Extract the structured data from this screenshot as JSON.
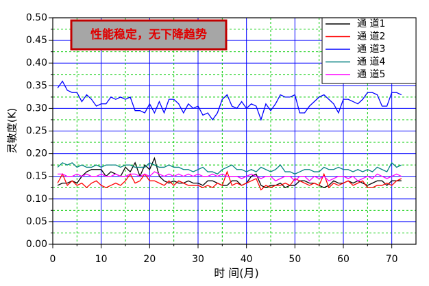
{
  "chart_data": {
    "type": "line",
    "annotation": "性能稳定，无下降趋势",
    "xlabel": "时 间(月)",
    "ylabel": "灵敏度(K)",
    "xlim": [
      0,
      75
    ],
    "xticks": [
      0,
      10,
      20,
      30,
      40,
      50,
      60,
      70
    ],
    "ylim": [
      0,
      0.5
    ],
    "yticks": [
      {
        "value": 0,
        "label": "0.00"
      },
      {
        "value": 0.05,
        "label": "0.05"
      },
      {
        "value": 0.1,
        "label": "0.10"
      },
      {
        "value": 0.15,
        "label": "0.15"
      },
      {
        "value": 0.2,
        "label": "0.20"
      },
      {
        "value": 0.25,
        "label": "0.25"
      },
      {
        "value": 0.3,
        "label": "0.30"
      },
      {
        "value": 0.35,
        "label": "0.35"
      },
      {
        "value": 0.4,
        "label": "0.40"
      },
      {
        "value": 0.45,
        "label": "0.45"
      },
      {
        "value": 0.5,
        "label": "0.50"
      }
    ],
    "grid": true,
    "legend": "upper right",
    "x": [
      1,
      2,
      3,
      4,
      5,
      6,
      7,
      8,
      9,
      10,
      11,
      12,
      13,
      14,
      15,
      16,
      17,
      18,
      19,
      20,
      21,
      22,
      23,
      24,
      25,
      26,
      27,
      28,
      29,
      30,
      31,
      32,
      33,
      34,
      35,
      36,
      37,
      38,
      39,
      40,
      41,
      42,
      43,
      44,
      45,
      46,
      47,
      48,
      49,
      50,
      51,
      52,
      53,
      54,
      55,
      56,
      57,
      58,
      59,
      60,
      61,
      62,
      63,
      64,
      65,
      66,
      67,
      68,
      69,
      70,
      71,
      72
    ],
    "series": [
      {
        "name": "通 道1",
        "color": "#000000",
        "values": [
          0.13,
          0.135,
          0.135,
          0.14,
          0.135,
          0.15,
          0.16,
          0.165,
          0.165,
          0.165,
          0.15,
          0.16,
          0.155,
          0.15,
          0.17,
          0.16,
          0.18,
          0.15,
          0.175,
          0.165,
          0.19,
          0.15,
          0.14,
          0.135,
          0.14,
          0.135,
          0.135,
          0.14,
          0.135,
          0.135,
          0.13,
          0.14,
          0.14,
          0.135,
          0.13,
          0.13,
          0.14,
          0.14,
          0.13,
          0.135,
          0.15,
          0.155,
          0.13,
          0.125,
          0.13,
          0.13,
          0.135,
          0.125,
          0.13,
          0.13,
          0.14,
          0.14,
          0.135,
          0.135,
          0.13,
          0.125,
          0.13,
          0.14,
          0.135,
          0.135,
          0.14,
          0.135,
          0.14,
          0.135,
          0.13,
          0.135,
          0.14,
          0.14,
          0.13,
          0.14,
          0.14,
          0.14
        ]
      },
      {
        "name": "通 道2",
        "color": "#ff0000",
        "values": [
          0.135,
          0.155,
          0.13,
          0.14,
          0.13,
          0.135,
          0.125,
          0.135,
          0.14,
          0.13,
          0.125,
          0.13,
          0.135,
          0.13,
          0.14,
          0.155,
          0.135,
          0.14,
          0.155,
          0.14,
          0.14,
          0.135,
          0.13,
          0.14,
          0.13,
          0.14,
          0.135,
          0.13,
          0.13,
          0.13,
          0.125,
          0.13,
          0.125,
          0.135,
          0.13,
          0.16,
          0.13,
          0.135,
          0.13,
          0.135,
          0.14,
          0.145,
          0.12,
          0.13,
          0.125,
          0.13,
          0.13,
          0.135,
          0.13,
          0.145,
          0.14,
          0.135,
          0.13,
          0.135,
          0.13,
          0.155,
          0.125,
          0.135,
          0.13,
          0.135,
          0.14,
          0.13,
          0.135,
          0.14,
          0.125,
          0.125,
          0.13,
          0.13,
          0.135,
          0.13,
          0.14,
          0.145
        ]
      },
      {
        "name": "通 道3",
        "color": "#0000ff",
        "values": [
          0.345,
          0.36,
          0.34,
          0.335,
          0.335,
          0.315,
          0.33,
          0.32,
          0.305,
          0.31,
          0.31,
          0.325,
          0.32,
          0.325,
          0.32,
          0.325,
          0.295,
          0.295,
          0.29,
          0.31,
          0.29,
          0.315,
          0.29,
          0.32,
          0.32,
          0.31,
          0.29,
          0.31,
          0.3,
          0.305,
          0.285,
          0.29,
          0.275,
          0.29,
          0.32,
          0.33,
          0.305,
          0.3,
          0.315,
          0.3,
          0.31,
          0.305,
          0.275,
          0.31,
          0.295,
          0.31,
          0.33,
          0.325,
          0.325,
          0.33,
          0.29,
          0.29,
          0.305,
          0.315,
          0.325,
          0.33,
          0.32,
          0.31,
          0.29,
          0.32,
          0.32,
          0.315,
          0.31,
          0.32,
          0.335,
          0.335,
          0.33,
          0.305,
          0.305,
          0.335,
          0.335,
          0.33
        ]
      },
      {
        "name": "通 道4",
        "color": "#008080",
        "values": [
          0.17,
          0.18,
          0.175,
          0.18,
          0.17,
          0.175,
          0.17,
          0.17,
          0.175,
          0.17,
          0.175,
          0.175,
          0.175,
          0.17,
          0.175,
          0.175,
          0.17,
          0.17,
          0.17,
          0.18,
          0.175,
          0.17,
          0.17,
          0.175,
          0.17,
          0.17,
          0.165,
          0.165,
          0.16,
          0.165,
          0.17,
          0.16,
          0.16,
          0.155,
          0.165,
          0.17,
          0.175,
          0.165,
          0.165,
          0.16,
          0.165,
          0.16,
          0.17,
          0.165,
          0.16,
          0.165,
          0.175,
          0.16,
          0.16,
          0.155,
          0.16,
          0.165,
          0.165,
          0.16,
          0.16,
          0.17,
          0.165,
          0.165,
          0.17,
          0.165,
          0.165,
          0.16,
          0.165,
          0.16,
          0.165,
          0.16,
          0.17,
          0.165,
          0.16,
          0.18,
          0.17,
          0.175
        ]
      },
      {
        "name": "通 道5",
        "color": "#ff00ff",
        "values": [
          0.155,
          0.155,
          0.15,
          0.15,
          0.155,
          0.15,
          0.155,
          0.15,
          0.15,
          0.155,
          0.15,
          0.15,
          0.155,
          0.15,
          0.15,
          0.155,
          0.155,
          0.15,
          0.155,
          0.15,
          0.16,
          0.155,
          0.15,
          0.155,
          0.15,
          0.155,
          0.15,
          0.155,
          0.15,
          0.155,
          0.15,
          0.15,
          0.155,
          0.15,
          0.155,
          0.15,
          0.15,
          0.15,
          0.145,
          0.15,
          0.155,
          0.15,
          0.145,
          0.15,
          0.15,
          0.14,
          0.145,
          0.15,
          0.15,
          0.14,
          0.15,
          0.15,
          0.14,
          0.15,
          0.145,
          0.15,
          0.14,
          0.145,
          0.15,
          0.15,
          0.145,
          0.15,
          0.14,
          0.145,
          0.15,
          0.145,
          0.155,
          0.15,
          0.145,
          0.15,
          0.155,
          0.15
        ]
      }
    ]
  }
}
